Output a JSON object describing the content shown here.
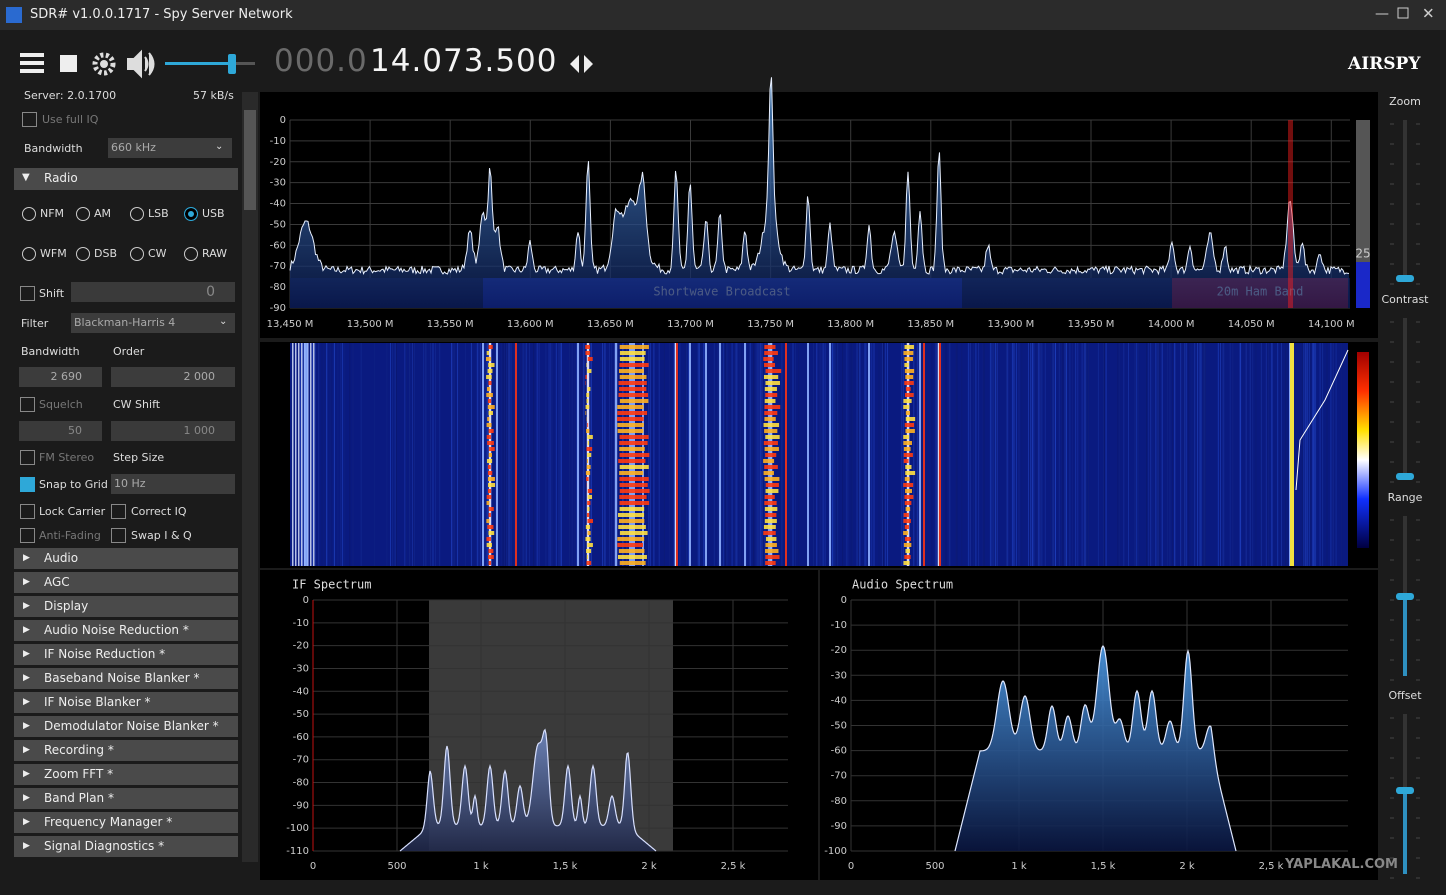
{
  "window": {
    "title": "SDR# v1.0.0.1717 - Spy Server Network"
  },
  "toolbar": {
    "frequency_dim": "000.0",
    "frequency": "14.073.500",
    "logo": "AIRSPY"
  },
  "sidebar": {
    "server": "Server: 2.0.1700",
    "rate": "57 kB/s",
    "use_full_iq": "Use full IQ",
    "bandwidth_label": "Bandwidth",
    "bandwidth_value": "660 kHz",
    "radio_section": "Radio",
    "modes": [
      "NFM",
      "AM",
      "LSB",
      "USB",
      "WFM",
      "DSB",
      "CW",
      "RAW"
    ],
    "selected_mode": "USB",
    "shift": "Shift",
    "shift_value": "0",
    "filter": "Filter",
    "filter_value": "Blackman-Harris 4",
    "bandwidth": "Bandwidth",
    "order": "Order",
    "bandwidth_input": "2 690",
    "order_input": "2 000",
    "squelch": "Squelch",
    "cw_shift": "CW Shift",
    "squelch_input": "50",
    "cw_shift_input": "1 000",
    "fm_stereo": "FM Stereo",
    "step_size": "Step Size",
    "snap_to_grid": "Snap to Grid",
    "step_value": "10 Hz",
    "lock_carrier": "Lock Carrier",
    "correct_iq": "Correct IQ",
    "anti_fading": "Anti-Fading",
    "swap_iq": "Swap I & Q",
    "sections": [
      "Audio",
      "AGC",
      "Display",
      "Audio Noise Reduction *",
      "IF Noise Reduction *",
      "Baseband Noise Blanker *",
      "IF Noise Blanker *",
      "Demodulator Noise Blanker *",
      "Recording *",
      "Zoom FFT *",
      "Band Plan *",
      "Frequency Manager *",
      "Signal Diagnostics *"
    ]
  },
  "spectrum": {
    "yticks": [
      "0",
      "-10",
      "-20",
      "-30",
      "-40",
      "-50",
      "-60",
      "-70",
      "-80",
      "-90"
    ],
    "xticks": [
      "13,450 M",
      "13,500 M",
      "13,550 M",
      "13,600 M",
      "13,650 M",
      "13,700 M",
      "13,750 M",
      "13,800 M",
      "13,850 M",
      "13,900 M",
      "13,950 M",
      "14,000 M",
      "14,050 M",
      "14,100 M"
    ],
    "bands": [
      "Shortwave Broadcast",
      "20m Ham Band"
    ],
    "contrast_value": "25"
  },
  "if_spectrum": {
    "title": "IF Spectrum",
    "yticks": [
      "0",
      "-10",
      "-20",
      "-30",
      "-40",
      "-50",
      "-60",
      "-70",
      "-80",
      "-90",
      "-100",
      "-110"
    ],
    "xticks": [
      "0",
      "500",
      "1 k",
      "1,5 k",
      "2 k",
      "2,5 k"
    ]
  },
  "audio_spectrum": {
    "title": "Audio Spectrum",
    "yticks": [
      "0",
      "-10",
      "-20",
      "-30",
      "-40",
      "-50",
      "-60",
      "-70",
      "-80",
      "-90",
      "-100"
    ],
    "xticks": [
      "0",
      "500",
      "1 k",
      "1,5 k",
      "2 k",
      "2,5 k"
    ]
  },
  "right_panel": {
    "labels": [
      "Zoom",
      "Contrast",
      "Range",
      "Offset"
    ]
  },
  "watermark": "YAPLAKAL.COM"
}
